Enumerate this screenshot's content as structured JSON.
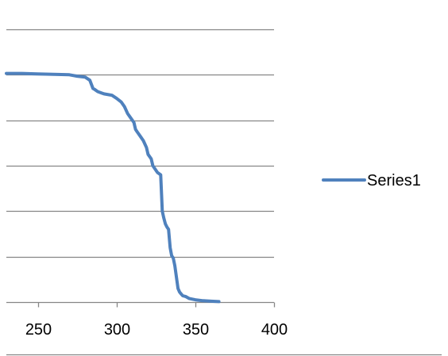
{
  "chart_data": {
    "type": "line",
    "title": "",
    "xlabel": "",
    "ylabel": "",
    "xlim": [
      230,
      400
    ],
    "ylim": [
      0,
      6
    ],
    "x_ticks": [
      250,
      300,
      350,
      400
    ],
    "x_tick_labels": [
      "250",
      "300",
      "350",
      "400"
    ],
    "y_gridlines": [
      1,
      2,
      3,
      4,
      5,
      6
    ],
    "grid": true,
    "legend": "right",
    "series": [
      {
        "name": "Series1",
        "color": "#4F81BD",
        "x": [
          230,
          240,
          250,
          260,
          270,
          275,
          280,
          283,
          285,
          286,
          288,
          292,
          297,
          300,
          303,
          305,
          307,
          309,
          311,
          312,
          313,
          315,
          317,
          319,
          320,
          322,
          323,
          325,
          326,
          328,
          329,
          330,
          331,
          332,
          333,
          334,
          335,
          336,
          337,
          338,
          339,
          340,
          341,
          342,
          344,
          346,
          350,
          355,
          360,
          365
        ],
        "y": [
          5.03,
          5.03,
          5.02,
          5.01,
          5.0,
          4.97,
          4.95,
          4.88,
          4.7,
          4.68,
          4.63,
          4.58,
          4.55,
          4.48,
          4.4,
          4.3,
          4.15,
          4.05,
          3.95,
          3.8,
          3.75,
          3.65,
          3.55,
          3.4,
          3.25,
          3.15,
          3.0,
          2.9,
          2.85,
          2.8,
          2.0,
          1.85,
          1.72,
          1.65,
          1.6,
          1.2,
          1.02,
          0.97,
          0.8,
          0.55,
          0.3,
          0.22,
          0.18,
          0.14,
          0.12,
          0.08,
          0.05,
          0.03,
          0.02,
          0.01
        ]
      }
    ]
  }
}
